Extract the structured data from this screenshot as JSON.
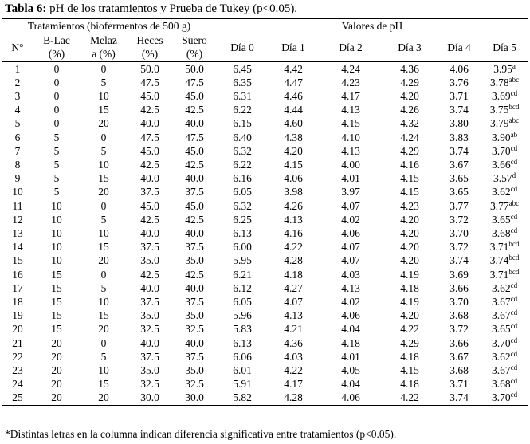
{
  "caption": {
    "label": "Tabla 6:",
    "text": " pH de los tratamientos y Prueba de Tukey (p<0.05)."
  },
  "header": {
    "group_treatments": "Tratamientos (biofermentos de 500 g)",
    "group_ph": "Valores de pH",
    "col_n": "N°",
    "col_blac_1": "B-Lac",
    "col_blac_2": "(%)",
    "col_melaza_1": "Melaz",
    "col_melaza_2": "a (%)",
    "col_heces_1": "Heces",
    "col_heces_2": "(%)",
    "col_suero_1": "Suero",
    "col_suero_2": "(%)",
    "col_d0": "Día 0",
    "col_d1": "Día 1",
    "col_d2": "Día 2",
    "col_d3": "Día 3",
    "col_d4": "Día 4",
    "col_d5": "Día 5"
  },
  "rows": [
    [
      "1",
      "0",
      "0",
      "50.0",
      "50.0",
      "6.45",
      "4.42",
      "4.24",
      "4.36",
      "4.06",
      "3.95",
      "a"
    ],
    [
      "2",
      "0",
      "5",
      "47.5",
      "47.5",
      "6.35",
      "4.47",
      "4.23",
      "4.29",
      "3.76",
      "3.78",
      "abc"
    ],
    [
      "3",
      "0",
      "10",
      "45.0",
      "45.0",
      "6.31",
      "4.46",
      "4.17",
      "4.20",
      "3.71",
      "3.69",
      "cd"
    ],
    [
      "4",
      "0",
      "15",
      "42.5",
      "42.5",
      "6.22",
      "4.44",
      "4.13",
      "4.26",
      "3.74",
      "3.75",
      "bcd"
    ],
    [
      "5",
      "0",
      "20",
      "40.0",
      "40.0",
      "6.15",
      "4.60",
      "4.15",
      "4.32",
      "3.80",
      "3.79",
      "abc"
    ],
    [
      "6",
      "5",
      "0",
      "47.5",
      "47.5",
      "6.40",
      "4.38",
      "4.10",
      "4.24",
      "3.83",
      "3.90",
      "ab"
    ],
    [
      "7",
      "5",
      "5",
      "45.0",
      "45.0",
      "6.32",
      "4.20",
      "4.13",
      "4.29",
      "3.74",
      "3.70",
      "cd"
    ],
    [
      "8",
      "5",
      "10",
      "42.5",
      "42.5",
      "6.22",
      "4.15",
      "4.00",
      "4.16",
      "3.67",
      "3.66",
      "cd"
    ],
    [
      "9",
      "5",
      "15",
      "40.0",
      "40.0",
      "6.16",
      "4.06",
      "4.01",
      "4.15",
      "3.65",
      "3.57",
      "d"
    ],
    [
      "10",
      "5",
      "20",
      "37.5",
      "37.5",
      "6.05",
      "3.98",
      "3.97",
      "4.15",
      "3.65",
      "3.62",
      "cd"
    ],
    [
      "11",
      "10",
      "0",
      "45.0",
      "45.0",
      "6.32",
      "4.26",
      "4.07",
      "4.23",
      "3.77",
      "3.77",
      "abc"
    ],
    [
      "12",
      "10",
      "5",
      "42.5",
      "42.5",
      "6.25",
      "4.13",
      "4.02",
      "4.20",
      "3.72",
      "3.65",
      "cd"
    ],
    [
      "13",
      "10",
      "10",
      "40.0",
      "40.0",
      "6.13",
      "4.16",
      "4.06",
      "4.20",
      "3.70",
      "3.68",
      "cd"
    ],
    [
      "14",
      "10",
      "15",
      "37.5",
      "37.5",
      "6.00",
      "4.22",
      "4.07",
      "4.20",
      "3.72",
      "3.71",
      "bcd"
    ],
    [
      "15",
      "10",
      "20",
      "35.0",
      "35.0",
      "5.95",
      "4.28",
      "4.07",
      "4.20",
      "3.74",
      "3.74",
      "bcd"
    ],
    [
      "16",
      "15",
      "0",
      "42.5",
      "42.5",
      "6.21",
      "4.18",
      "4.03",
      "4.19",
      "3.69",
      "3.71",
      "bcd"
    ],
    [
      "17",
      "15",
      "5",
      "40.0",
      "40.0",
      "6.12",
      "4.27",
      "4.13",
      "4.18",
      "3.66",
      "3.62",
      "cd"
    ],
    [
      "18",
      "15",
      "10",
      "37.5",
      "37.5",
      "6.05",
      "4.07",
      "4.02",
      "4.19",
      "3.70",
      "3.67",
      "cd"
    ],
    [
      "19",
      "15",
      "15",
      "35.0",
      "35.0",
      "5.96",
      "4.13",
      "4.06",
      "4.20",
      "3.68",
      "3.67",
      "cd"
    ],
    [
      "20",
      "15",
      "20",
      "32.5",
      "32.5",
      "5.83",
      "4.21",
      "4.04",
      "4.22",
      "3.72",
      "3.65",
      "cd"
    ],
    [
      "21",
      "20",
      "0",
      "40.0",
      "40.0",
      "6.13",
      "4.36",
      "4.18",
      "4.29",
      "3.66",
      "3.70",
      "cd"
    ],
    [
      "22",
      "20",
      "5",
      "37.5",
      "37.5",
      "6.06",
      "4.03",
      "4.01",
      "4.18",
      "3.67",
      "3.62",
      "cd"
    ],
    [
      "23",
      "20",
      "10",
      "35.0",
      "35.0",
      "6.01",
      "4.22",
      "4.05",
      "4.15",
      "3.68",
      "3.67",
      "cd"
    ],
    [
      "24",
      "20",
      "15",
      "32.5",
      "32.5",
      "5.91",
      "4.17",
      "4.04",
      "4.18",
      "3.71",
      "3.68",
      "cd"
    ],
    [
      "25",
      "20",
      "20",
      "30.0",
      "30.0",
      "5.82",
      "4.28",
      "4.06",
      "4.22",
      "3.74",
      "3.70",
      "cd"
    ]
  ],
  "footnote": "*Distintas letras en la columna indican diferencia significativa entre tratamientos (p<0.05)."
}
